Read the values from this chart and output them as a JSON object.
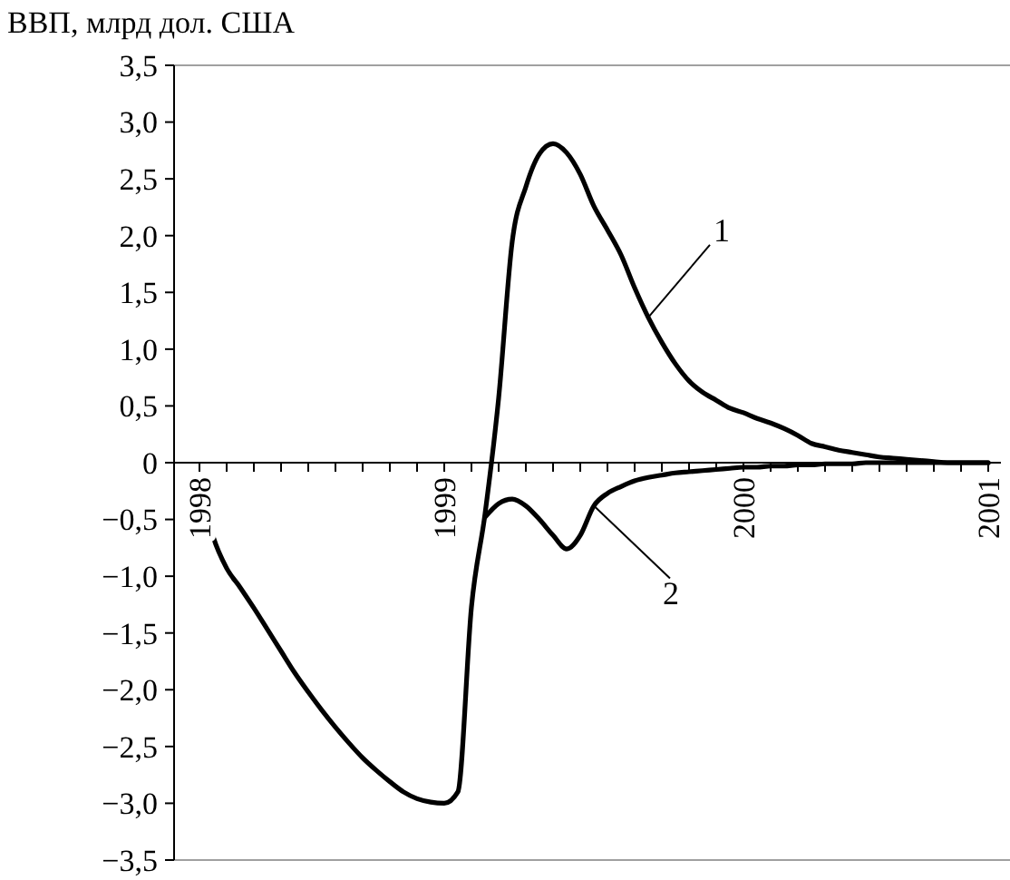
{
  "chart_data": {
    "type": "line",
    "ylabel": "ВВП, млрд дол. США",
    "categories": [
      "1998",
      null,
      null,
      null,
      null,
      null,
      null,
      null,
      null,
      null,
      null,
      null,
      null,
      null,
      null,
      null,
      null,
      null,
      "1999",
      null,
      null,
      null,
      null,
      null,
      null,
      null,
      null,
      null,
      null,
      null,
      null,
      null,
      null,
      null,
      null,
      null,
      null,
      null,
      null,
      null,
      "2000",
      null,
      null,
      null,
      null,
      null,
      null,
      null,
      null,
      null,
      null,
      null,
      null,
      null,
      null,
      null,
      null,
      null,
      "2001"
    ],
    "ylim": [
      -3.5,
      3.5
    ],
    "yticks": [
      {
        "value": 3.5,
        "label": "3,5"
      },
      {
        "value": 3,
        "label": "3,0"
      },
      {
        "value": 2.5,
        "label": "2,5"
      },
      {
        "value": 2,
        "label": "2,0"
      },
      {
        "value": 1.5,
        "label": "1,5"
      },
      {
        "value": 1,
        "label": "1,0"
      },
      {
        "value": 0.5,
        "label": "0,5"
      },
      {
        "value": 0,
        "label": "0"
      },
      {
        "value": -0.5,
        "label": "−0,5"
      },
      {
        "value": -1,
        "label": "−1,0"
      },
      {
        "value": -1.5,
        "label": "−1,5"
      },
      {
        "value": -2,
        "label": "−2,0"
      },
      {
        "value": -2.5,
        "label": "−2,5"
      },
      {
        "value": -3,
        "label": "−3,0"
      },
      {
        "value": -3.5,
        "label": "−3,5"
      }
    ],
    "series": [
      {
        "name": "1",
        "color": "#000000",
        "values": [
          -0.16,
          -0.65,
          -0.93,
          -1.1,
          -1.28,
          -1.47,
          -1.66,
          -1.85,
          -2.02,
          -2.18,
          -2.33,
          -2.47,
          -2.6,
          -2.71,
          -2.81,
          -2.9,
          -2.96,
          -2.99,
          -3.0,
          -2.9,
          -1.27,
          -0.45,
          0.57,
          1.95,
          2.43,
          2.72,
          2.81,
          2.73,
          2.54,
          2.26,
          2.05,
          1.83,
          1.54,
          1.28,
          1.06,
          0.87,
          0.72,
          0.62,
          0.55,
          0.48,
          0.44,
          0.39,
          0.35,
          0.3,
          0.24,
          0.17,
          0.14,
          0.11,
          0.09,
          0.07,
          0.05,
          0.04,
          0.03,
          0.02,
          0.01,
          0,
          0,
          0,
          0
        ]
      },
      {
        "name": "2",
        "color": "#000000",
        "values": [
          null,
          null,
          null,
          null,
          null,
          null,
          null,
          null,
          null,
          null,
          null,
          null,
          null,
          null,
          null,
          null,
          null,
          null,
          null,
          null,
          null,
          -0.48,
          -0.36,
          -0.32,
          -0.38,
          -0.5,
          -0.64,
          -0.76,
          -0.64,
          -0.38,
          -0.27,
          -0.21,
          -0.16,
          -0.13,
          -0.11,
          -0.09,
          -0.08,
          -0.07,
          -0.06,
          -0.05,
          -0.04,
          -0.04,
          -0.03,
          -0.03,
          -0.02,
          -0.02,
          -0.01,
          -0.01,
          -0.01,
          0,
          0,
          0,
          0,
          0,
          0,
          0,
          0,
          0,
          0
        ]
      }
    ]
  }
}
